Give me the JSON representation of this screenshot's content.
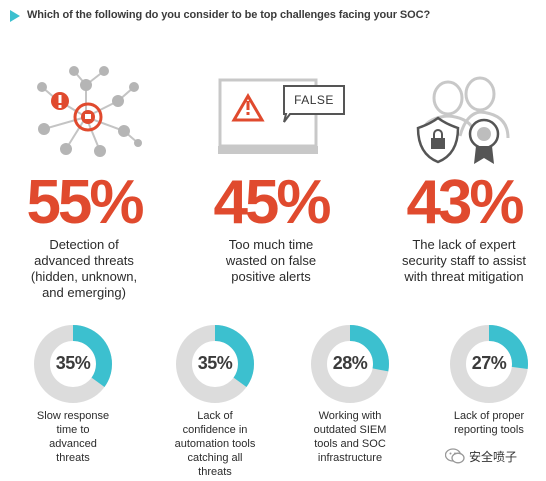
{
  "header": {
    "question": "Which of the following do you consider to be top challenges facing your SOC?"
  },
  "chart_data": [
    {
      "type": "table",
      "items": [
        {
          "value": 55,
          "label": "55%",
          "desc": [
            "Detection of",
            "advanced threats",
            "(hidden, unknown,",
            "and emerging)"
          ]
        },
        {
          "value": 45,
          "label": "45%",
          "desc": [
            "Too much time",
            "wasted on false",
            "positive alerts"
          ]
        },
        {
          "value": 43,
          "label": "43%",
          "desc": [
            "The lack of expert",
            "security staff to assist",
            "with threat mitigation"
          ]
        }
      ]
    },
    {
      "type": "pie",
      "items": [
        {
          "value": 35,
          "label": "35%",
          "desc": [
            "Slow response",
            "time to",
            "advanced",
            "threats"
          ]
        },
        {
          "value": 35,
          "label": "35%",
          "desc": [
            "Lack of",
            "confidence in",
            "automation tools",
            "catching all",
            "threats"
          ]
        },
        {
          "value": 28,
          "label": "28%",
          "desc": [
            "Working with",
            "outdated SIEM",
            "tools and SOC",
            "infrastructure"
          ]
        },
        {
          "value": 27,
          "label": "27%",
          "desc": [
            "Lack of proper",
            "reporting tools"
          ]
        }
      ]
    }
  ],
  "illustrations": {
    "false_label": "FALSE"
  },
  "colors": {
    "accent": "#3cc0cf",
    "red": "#e04a2e",
    "track": "#dcdcdc",
    "icon_gray": "#b5b5b5"
  },
  "watermark": {
    "text": "安全喷子"
  }
}
